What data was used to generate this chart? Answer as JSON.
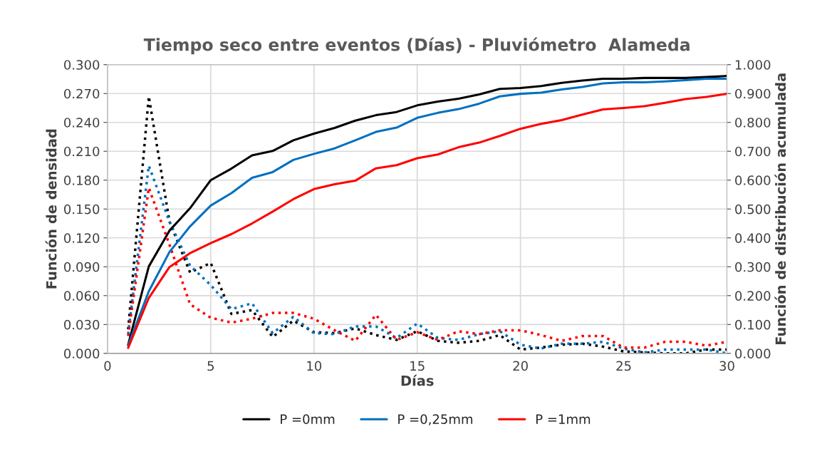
{
  "chart_data": {
    "type": "line",
    "title": "Tiempo seco entre eventos (Días) - Pluviómetro  Alameda",
    "xlabel": "Días",
    "ylabel": "Función de densidad",
    "y2label": "Función de distribución acumulada",
    "x": [
      1,
      2,
      3,
      4,
      5,
      6,
      7,
      8,
      9,
      10,
      11,
      12,
      13,
      14,
      15,
      16,
      17,
      18,
      19,
      20,
      21,
      22,
      23,
      24,
      25,
      26,
      27,
      28,
      29,
      30
    ],
    "series": [
      {
        "name": "P =0mm",
        "color": "#000000",
        "axis": "y2",
        "line_style": "solid",
        "values": [
          0.03,
          0.301,
          0.425,
          0.503,
          0.6,
          0.64,
          0.686,
          0.701,
          0.738,
          0.761,
          0.781,
          0.806,
          0.825,
          0.836,
          0.859,
          0.872,
          0.882,
          0.897,
          0.916,
          0.919,
          0.926,
          0.937,
          0.945,
          0.951,
          0.951,
          0.954,
          0.954,
          0.954,
          0.957,
          0.961
        ]
      },
      {
        "name": "P =0,25mm",
        "color": "#0070c0",
        "axis": "y2",
        "line_style": "solid",
        "values": [
          0.027,
          0.215,
          0.351,
          0.44,
          0.512,
          0.555,
          0.608,
          0.628,
          0.67,
          0.691,
          0.71,
          0.738,
          0.767,
          0.782,
          0.816,
          0.833,
          0.846,
          0.865,
          0.89,
          0.899,
          0.903,
          0.914,
          0.923,
          0.935,
          0.939,
          0.939,
          0.942,
          0.946,
          0.951,
          0.951
        ]
      },
      {
        "name": "P =1mm",
        "color": "#ff0000",
        "axis": "y2",
        "line_style": "solid",
        "values": [
          0.019,
          0.192,
          0.299,
          0.347,
          0.382,
          0.413,
          0.45,
          0.491,
          0.534,
          0.569,
          0.586,
          0.598,
          0.641,
          0.652,
          0.676,
          0.689,
          0.714,
          0.73,
          0.753,
          0.778,
          0.795,
          0.808,
          0.827,
          0.845,
          0.85,
          0.856,
          0.868,
          0.881,
          0.888,
          0.899
        ]
      },
      {
        "color": "#000000",
        "axis": "y",
        "line_style": "dotted",
        "values": [
          0.025,
          0.267,
          0.137,
          0.084,
          0.094,
          0.041,
          0.045,
          0.017,
          0.034,
          0.022,
          0.021,
          0.026,
          0.019,
          0.014,
          0.023,
          0.013,
          0.011,
          0.013,
          0.019,
          0.004,
          0.006,
          0.009,
          0.01,
          0.007,
          0.002,
          0.001,
          0.0,
          0.0,
          0.004,
          0.004
        ]
      },
      {
        "color": "#0070c0",
        "axis": "y",
        "line_style": "dotted",
        "values": [
          0.02,
          0.195,
          0.137,
          0.091,
          0.071,
          0.046,
          0.052,
          0.021,
          0.038,
          0.021,
          0.02,
          0.028,
          0.028,
          0.016,
          0.031,
          0.016,
          0.014,
          0.02,
          0.023,
          0.009,
          0.005,
          0.01,
          0.01,
          0.012,
          0.005,
          0.001,
          0.004,
          0.004,
          0.004,
          0.0
        ]
      },
      {
        "color": "#ff0000",
        "axis": "y",
        "line_style": "dotted",
        "values": [
          0.018,
          0.172,
          0.113,
          0.051,
          0.037,
          0.032,
          0.036,
          0.042,
          0.042,
          0.036,
          0.024,
          0.013,
          0.04,
          0.014,
          0.022,
          0.014,
          0.023,
          0.02,
          0.024,
          0.024,
          0.019,
          0.013,
          0.018,
          0.018,
          0.006,
          0.006,
          0.012,
          0.012,
          0.008,
          0.012
        ]
      }
    ],
    "xlim": [
      0,
      30
    ],
    "xticks": [
      0,
      5,
      10,
      15,
      20,
      25,
      30
    ],
    "ylim": [
      0,
      0.3
    ],
    "yticks": [
      {
        "value": 0,
        "label": "0.000"
      },
      {
        "value": 0.03,
        "label": "0.030"
      },
      {
        "value": 0.06,
        "label": "0.060"
      },
      {
        "value": 0.09,
        "label": "0.090"
      },
      {
        "value": 0.12,
        "label": "0.120"
      },
      {
        "value": 0.15,
        "label": "0.150"
      },
      {
        "value": 0.18,
        "label": "0.180"
      },
      {
        "value": 0.21,
        "label": "0.210"
      },
      {
        "value": 0.24,
        "label": "0.240"
      },
      {
        "value": 0.27,
        "label": "0.270"
      },
      {
        "value": 0.3,
        "label": "0.300"
      }
    ],
    "y2lim": [
      0,
      1
    ],
    "y2ticks": [
      {
        "value": 0,
        "label": "0.000"
      },
      {
        "value": 0.1,
        "label": "0.100"
      },
      {
        "value": 0.2,
        "label": "0.200"
      },
      {
        "value": 0.3,
        "label": "0.300"
      },
      {
        "value": 0.4,
        "label": "0.400"
      },
      {
        "value": 0.5,
        "label": "0.500"
      },
      {
        "value": 0.6,
        "label": "0.600"
      },
      {
        "value": 0.7,
        "label": "0.700"
      },
      {
        "value": 0.8,
        "label": "0.800"
      },
      {
        "value": 0.9,
        "label": "0.900"
      },
      {
        "value": 1,
        "label": "1.000"
      }
    ],
    "grid": true,
    "legend": "bottom",
    "marker": "none"
  }
}
